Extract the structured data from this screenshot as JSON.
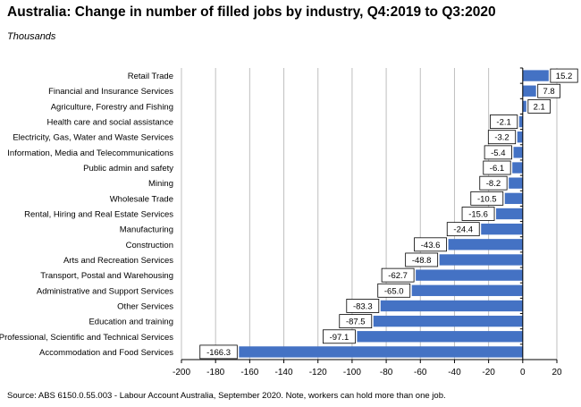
{
  "title": "Australia:  Change in number of filled jobs by industry,  Q4:2019 to Q3:2020",
  "subtitle": "Thousands",
  "source": "Source: ABS 6150.0.55.003 - Labour Account Australia, September 2020.  Note, workers can hold more than one job.",
  "colors": {
    "bar": "#4472C4",
    "grid": "#bfbfbf",
    "axis": "#000000",
    "label_border": "#000000"
  },
  "chart_data": {
    "type": "bar",
    "orientation": "horizontal",
    "categories": [
      "Retail Trade",
      "Financial and Insurance Services",
      "Agriculture, Forestry and Fishing",
      "Health care and social assistance",
      "Electricity, Gas, Water and Waste Services",
      "Information, Media and Telecommunications",
      "Public admin and safety",
      "Mining",
      "Wholesale Trade",
      "Rental, Hiring and Real Estate Services",
      "Manufacturing",
      "Construction",
      "Arts and Recreation Services",
      "Transport, Postal and Warehousing",
      "Administrative and Support Services",
      "Other Services",
      "Education and training",
      "Professional, Scientific and Technical Services",
      "Accommodation and Food Services"
    ],
    "values": [
      15.2,
      7.8,
      2.1,
      -2.1,
      -3.2,
      -5.4,
      -6.1,
      -8.2,
      -10.5,
      -15.6,
      -24.4,
      -43.6,
      -48.8,
      -62.7,
      -65.0,
      -83.3,
      -87.5,
      -97.1,
      -166.3
    ],
    "value_labels": [
      "15.2",
      "7.8",
      "2.1",
      "-2.1",
      "-3.2",
      "-5.4",
      "-6.1",
      "-8.2",
      "-10.5",
      "-15.6",
      "-24.4",
      "-43.6",
      "-48.8",
      "-62.7",
      "-65.0",
      "-83.3",
      "-87.5",
      "-97.1",
      "-166.3"
    ],
    "xlim": [
      -200,
      20
    ],
    "xticks": [
      -200,
      -180,
      -160,
      -140,
      -120,
      -100,
      -80,
      -60,
      -40,
      -20,
      0,
      20
    ],
    "grid": "vertical",
    "legend": "none"
  }
}
